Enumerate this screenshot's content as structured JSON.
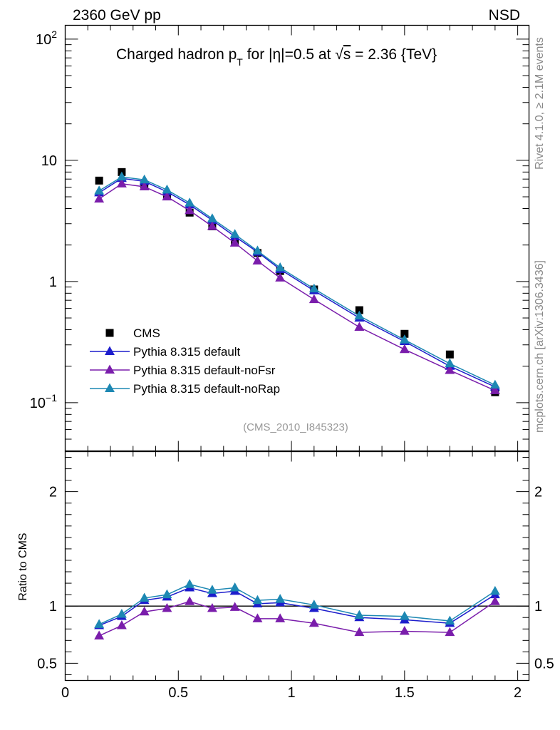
{
  "header": {
    "energy_label": "2360 GeV pp",
    "process_label": "NSD"
  },
  "side_labels": {
    "rivet": "Rivet 4.1.0, ≥ 2.1M events",
    "mcplots": "mcplots.cern.ch [arXiv:1306.3436]"
  },
  "chart_data": {
    "type": "line",
    "title_parts": {
      "pre": "Charged hadron p",
      "sub": "T",
      "mid": " for |η|=0.5 at ",
      "sqrt": "√",
      "s": "s",
      "post": " = 2.36 {TeV}"
    },
    "analysis_id": "(CMS_2010_I845323)",
    "xlabel": "",
    "xlim": [
      0,
      2.05
    ],
    "x_ticks": [
      "0",
      "0.5",
      "1",
      "1.5",
      "2"
    ],
    "x_tick_values": [
      0,
      0.5,
      1,
      1.5,
      2
    ],
    "main_panel": {
      "yscale": "log",
      "ylim": [
        0.04,
        130
      ],
      "y_tick_labels": [
        {
          "value": 100,
          "base": "10",
          "exp": "2"
        },
        {
          "value": 10,
          "base": "10",
          "exp": ""
        },
        {
          "value": 1,
          "base": "1",
          "exp": ""
        },
        {
          "value": 0.1,
          "base": "10",
          "exp": "−1"
        }
      ]
    },
    "ratio_panel": {
      "ylabel": "Ratio to CMS",
      "ylim": [
        0.35,
        2.35
      ],
      "y_ticks": [
        "0.5",
        "1",
        "2"
      ],
      "y_tick_values": [
        0.5,
        1,
        2
      ],
      "reference_line": 1
    },
    "x": [
      0.15,
      0.25,
      0.35,
      0.45,
      0.55,
      0.65,
      0.75,
      0.85,
      0.95,
      1.1,
      1.3,
      1.5,
      1.7,
      1.9
    ],
    "series": [
      {
        "name": "CMS",
        "role": "data",
        "color": "#000000",
        "marker": "square",
        "values": [
          6.8,
          8.0,
          6.3,
          5.1,
          3.7,
          2.85,
          2.1,
          1.72,
          1.22,
          0.86,
          0.58,
          0.37,
          0.25,
          0.122
        ]
      },
      {
        "name": "Pythia 8.315 default",
        "role": "mc",
        "color": "#1d1dcc",
        "marker": "triangle",
        "values": [
          5.4,
          7.1,
          6.7,
          5.5,
          4.3,
          3.2,
          2.35,
          1.75,
          1.26,
          0.84,
          0.5,
          0.32,
          0.2,
          0.135
        ],
        "ratio": [
          0.83,
          0.91,
          1.05,
          1.08,
          1.16,
          1.11,
          1.13,
          1.02,
          1.03,
          0.98,
          0.9,
          0.88,
          0.85,
          1.1
        ]
      },
      {
        "name": "Pythia 8.315 default-noFsr",
        "role": "mc",
        "color": "#7a1dab",
        "marker": "triangle",
        "values": [
          4.8,
          6.4,
          6.05,
          5.0,
          3.85,
          2.85,
          2.08,
          1.48,
          1.07,
          0.71,
          0.42,
          0.275,
          0.185,
          0.126
        ],
        "ratio": [
          0.74,
          0.83,
          0.95,
          0.98,
          1.04,
          0.98,
          0.99,
          0.89,
          0.89,
          0.85,
          0.77,
          0.78,
          0.77,
          1.04
        ]
      },
      {
        "name": "Pythia 8.315 default-noRap",
        "role": "mc",
        "color": "#1d88b3",
        "marker": "triangle",
        "values": [
          5.6,
          7.3,
          6.9,
          5.7,
          4.45,
          3.3,
          2.45,
          1.79,
          1.3,
          0.87,
          0.52,
          0.33,
          0.21,
          0.14
        ],
        "ratio": [
          0.84,
          0.93,
          1.07,
          1.1,
          1.19,
          1.14,
          1.16,
          1.05,
          1.06,
          1.01,
          0.92,
          0.91,
          0.87,
          1.13
        ]
      }
    ],
    "legend_position": "lower-left"
  }
}
